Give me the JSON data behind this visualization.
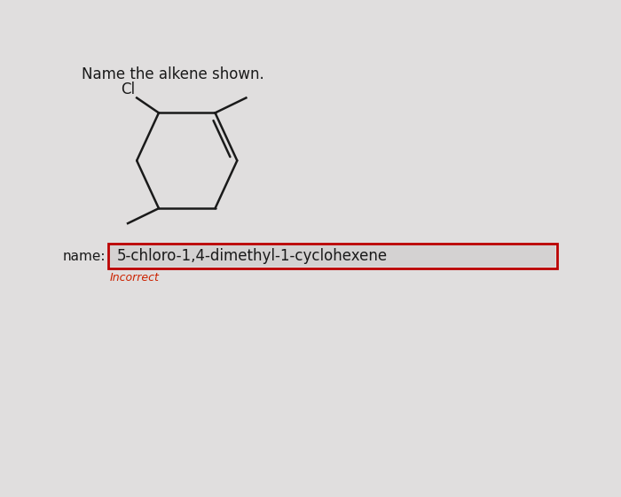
{
  "title_text": "Name the alkene shown.",
  "cl_label": "Cl",
  "answer_text": "5-chloro-1,4-dimethyl-1-cyclohexene",
  "name_label": "name:",
  "incorrect_label": "Incorrect",
  "bg_color": "#d8d8d8",
  "page_bg": "#e0dede",
  "box_bg": "#d4d2d2",
  "box_border": "#bb0000",
  "incorrect_color": "#cc2200",
  "line_color": "#1a1a1a",
  "text_color": "#1a1a1a",
  "figsize": [
    7.0,
    5.61
  ],
  "dpi": 100
}
